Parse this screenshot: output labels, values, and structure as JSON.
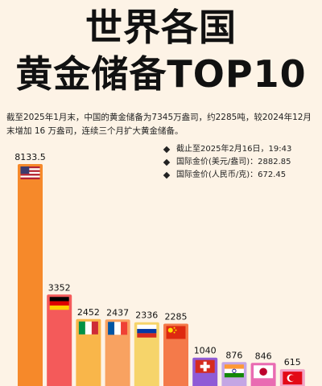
{
  "header": {
    "title_line1": "世界各国",
    "title_line2": "黄金储备TOP10",
    "subtitle": "截至2025年1月末，中国的黄金储备为7345万盎司，约2285吨，较2024年12月末增加 16 万盎司，连续三个月扩大黄金储备。"
  },
  "info": {
    "items": [
      "截止至2025年2月16日，19:43",
      "国际金价(美元/盎司)：2882.85",
      "国际金价(人民币/克)：672.45"
    ]
  },
  "chart_data": {
    "type": "bar",
    "title": "世界各国黄金储备TOP10",
    "values": [
      8133.5,
      3352,
      2452,
      2437,
      2336,
      2285,
      1040,
      876,
      846,
      615
    ],
    "value_labels": [
      "8133.5",
      "3352",
      "2452",
      "2437",
      "2336",
      "2285",
      "1040",
      "876",
      "846",
      "615"
    ],
    "flags": [
      "us-flag-icon",
      "germany-flag-icon",
      "italy-flag-icon",
      "france-flag-icon",
      "russia-flag-icon",
      "china-flag-icon",
      "switzerland-flag-icon",
      "india-flag-icon",
      "japan-flag-icon",
      "turkey-flag-icon"
    ],
    "bar_colors": [
      "#f6892a",
      "#f45a5a",
      "#f9b64a",
      "#f8a261",
      "#f6d46a",
      "#f47a4a",
      "#8f5bd6",
      "#c4a6e4",
      "#e96bb2",
      "#f2a3c6"
    ],
    "grid": false,
    "legend": "none"
  }
}
